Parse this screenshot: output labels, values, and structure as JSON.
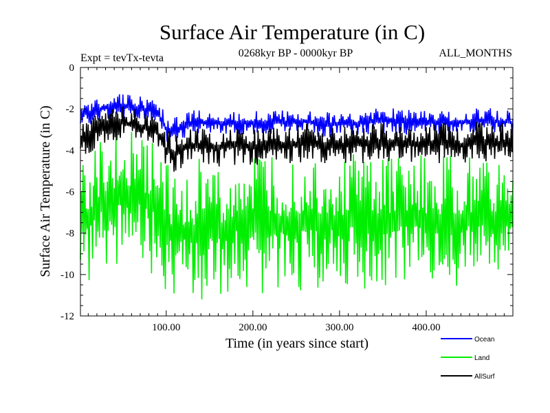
{
  "chart_data": {
    "type": "line",
    "title": "Surface Air Temperature (in C)",
    "subtitle": "0268kyr BP - 0000kyr BP",
    "expt_label": "Expt = tevTx-tevta",
    "months_label": "ALL_MONTHS",
    "xlabel": "Time (in years since start)",
    "ylabel": "Surface Air Temperature (in C)",
    "xlim": [
      1,
      500
    ],
    "ylim": [
      -12,
      0
    ],
    "x_ticks": [
      100,
      200,
      300,
      400
    ],
    "x_tick_labels": [
      "100.00",
      "200.00",
      "300.00",
      "400.00"
    ],
    "y_ticks": [
      0,
      -2,
      -4,
      -6,
      -8,
      -10,
      -12
    ],
    "y_tick_labels": [
      "0",
      "-2",
      "-4",
      "-6",
      "-8",
      "-10",
      "-12"
    ],
    "grid": false,
    "legend_position": "bottom-right",
    "series": [
      {
        "name": "Ocean",
        "color": "#0000ff",
        "x": [
          1,
          10,
          20,
          30,
          40,
          50,
          60,
          70,
          80,
          90,
          100,
          110,
          120,
          140,
          160,
          180,
          200,
          220,
          240,
          260,
          280,
          300,
          320,
          340,
          360,
          380,
          400,
          420,
          440,
          460,
          480,
          500
        ],
        "y_low": [
          -2.7,
          -2.8,
          -2.7,
          -2.6,
          -2.5,
          -2.5,
          -2.6,
          -2.5,
          -2.6,
          -2.7,
          -3.6,
          -3.7,
          -3.4,
          -3.3,
          -3.2,
          -3.3,
          -3.3,
          -3.2,
          -3.3,
          -3.2,
          -3.4,
          -3.4,
          -3.3,
          -3.2,
          -3.2,
          -3.3,
          -3.2,
          -3.3,
          -3.2,
          -3.2,
          -3.2,
          -3.2
        ],
        "y_high": [
          -1.5,
          -1.6,
          -1.4,
          -1.3,
          -1.3,
          -1.2,
          -1.3,
          -1.4,
          -1.5,
          -1.6,
          -2.3,
          -2.4,
          -2.1,
          -2.0,
          -2.2,
          -2.1,
          -2.0,
          -2.1,
          -2.0,
          -2.0,
          -2.1,
          -2.0,
          -2.1,
          -2.0,
          -1.9,
          -2.0,
          -2.0,
          -2.0,
          -2.1,
          -1.9,
          -2.0,
          -2.1
        ]
      },
      {
        "name": "Land",
        "color": "#00ee00",
        "x": [
          1,
          10,
          20,
          30,
          40,
          50,
          60,
          70,
          80,
          90,
          100,
          110,
          120,
          140,
          160,
          180,
          200,
          220,
          240,
          260,
          280,
          300,
          320,
          340,
          360,
          380,
          400,
          420,
          440,
          460,
          480,
          500
        ],
        "y_low": [
          -10.4,
          -10.8,
          -10.2,
          -9.6,
          -9.8,
          -9.7,
          -9.5,
          -9.7,
          -9.9,
          -10.2,
          -10.9,
          -11.1,
          -11.4,
          -11.6,
          -11.2,
          -10.6,
          -10.8,
          -11.0,
          -10.7,
          -10.8,
          -10.9,
          -10.5,
          -10.7,
          -10.9,
          -10.5,
          -10.6,
          -10.4,
          -10.8,
          -10.5,
          -10.4,
          -10.7,
          -10.2
        ],
        "y_high": [
          -4.4,
          -4.0,
          -3.2,
          -3.0,
          -2.8,
          -2.6,
          -2.8,
          -2.9,
          -3.0,
          -3.3,
          -4.6,
          -5.1,
          -4.5,
          -4.3,
          -4.6,
          -4.3,
          -4.4,
          -4.2,
          -4.5,
          -4.1,
          -4.2,
          -4.4,
          -4.0,
          -4.3,
          -4.2,
          -4.1,
          -4.3,
          -4.2,
          -4.4,
          -4.1,
          -4.3,
          -4.4
        ]
      },
      {
        "name": "AllSurf",
        "color": "#000000",
        "x": [
          1,
          10,
          20,
          30,
          40,
          50,
          60,
          70,
          80,
          90,
          100,
          110,
          120,
          140,
          160,
          180,
          200,
          220,
          240,
          260,
          280,
          300,
          320,
          340,
          360,
          380,
          400,
          420,
          440,
          460,
          480,
          500
        ],
        "y_low": [
          -4.6,
          -4.3,
          -3.9,
          -3.7,
          -3.6,
          -3.5,
          -3.6,
          -3.7,
          -3.8,
          -4.0,
          -5.0,
          -5.1,
          -4.8,
          -4.7,
          -4.8,
          -4.7,
          -4.8,
          -4.6,
          -4.7,
          -4.6,
          -4.7,
          -4.8,
          -4.6,
          -4.7,
          -4.6,
          -4.6,
          -4.7,
          -4.6,
          -4.7,
          -4.6,
          -4.7,
          -4.8
        ],
        "y_high": [
          -2.6,
          -2.4,
          -2.2,
          -2.0,
          -1.9,
          -1.8,
          -2.0,
          -2.0,
          -2.1,
          -2.3,
          -3.0,
          -3.2,
          -2.9,
          -2.8,
          -2.9,
          -2.8,
          -2.9,
          -2.8,
          -2.8,
          -2.7,
          -2.8,
          -2.7,
          -2.8,
          -2.7,
          -2.6,
          -2.7,
          -2.7,
          -2.6,
          -2.8,
          -2.6,
          -2.7,
          -2.6
        ]
      }
    ]
  }
}
